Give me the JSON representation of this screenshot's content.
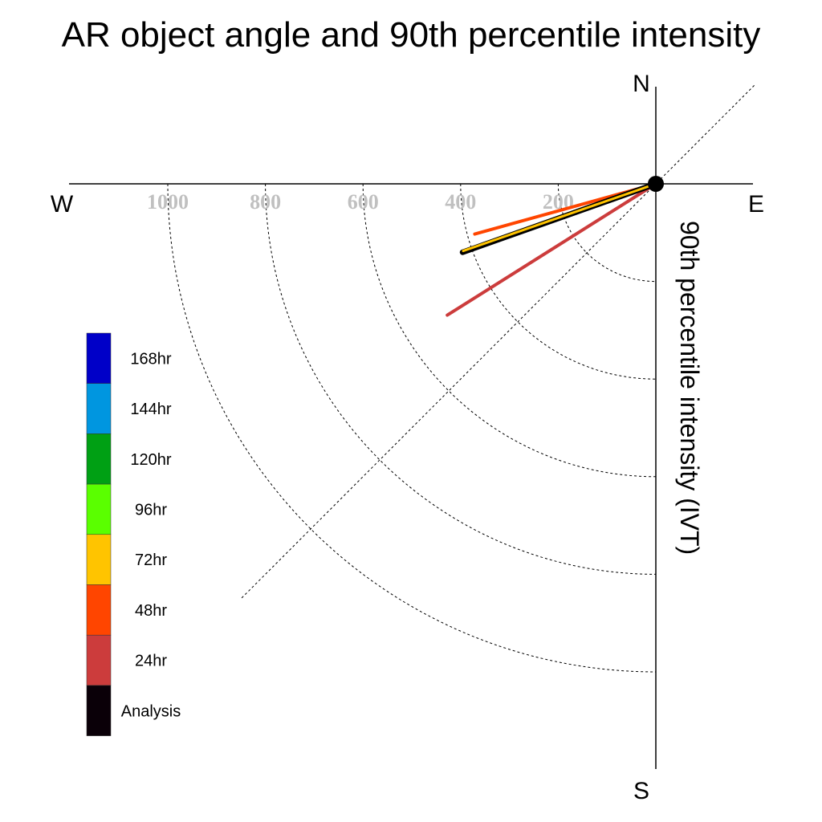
{
  "chart_data": {
    "type": "polar-vector",
    "title": "AR object angle and 90th percentile intensity",
    "ylabel": "90th percentile intensity (IVT)",
    "compass": {
      "north": "N",
      "south": "S",
      "east": "E",
      "west": "W"
    },
    "rings": [
      200,
      400,
      600,
      800,
      1000
    ],
    "ring_labels": [
      "200",
      "400",
      "600",
      "800",
      "1000"
    ],
    "rmax": 1200,
    "series": [
      {
        "name": "24hr",
        "magnitude": 505,
        "bearing_deg": 237.8,
        "color": "#cc3c3c"
      },
      {
        "name": "48hr",
        "magnitude": 385,
        "bearing_deg": 254.5,
        "color": "#ff4500"
      },
      {
        "name": "72hr",
        "magnitude": 418,
        "bearing_deg": 250.8,
        "color": "#ffc400"
      },
      {
        "name": "Analysis",
        "magnitude": 420,
        "bearing_deg": 250.5,
        "color": "#000000"
      }
    ],
    "legend": [
      {
        "label": "168hr",
        "color": "#0000c8"
      },
      {
        "label": "144hr",
        "color": "#0096e0"
      },
      {
        "label": "120hr",
        "color": "#00a014"
      },
      {
        "label": "96hr",
        "color": "#5aff00"
      },
      {
        "label": "72hr",
        "color": "#ffc400"
      },
      {
        "label": "48hr",
        "color": "#ff4500"
      },
      {
        "label": "24hr",
        "color": "#cc3c3c"
      },
      {
        "label": "Analysis",
        "color": "#0a0008"
      }
    ]
  }
}
